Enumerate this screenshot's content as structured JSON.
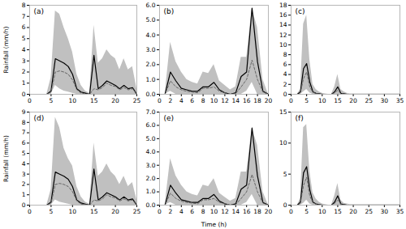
{
  "chart_data": [
    {
      "type": "line",
      "annotations": [
        "(a)"
      ],
      "ylabel": "Rainfall (mm/h)",
      "grid": false,
      "x": [
        0,
        1,
        2,
        3,
        4,
        5,
        6,
        7,
        8,
        9,
        10,
        11,
        12,
        13,
        14,
        15,
        16,
        17,
        18,
        19,
        20,
        21,
        22,
        23,
        24,
        25
      ],
      "series": [
        {
          "type": "area",
          "color": "#c0c0c0",
          "upper": [
            0,
            0,
            0,
            0,
            0,
            1.5,
            7.5,
            7.2,
            6.0,
            5.0,
            3.8,
            1.8,
            0.8,
            0.3,
            0.1,
            6.2,
            2.8,
            3.2,
            4.0,
            3.5,
            3.2,
            2.2,
            3.2,
            2.2,
            2.5,
            0.5
          ],
          "lower": [
            0,
            0,
            0,
            0,
            0,
            0.0,
            0.8,
            0.5,
            0.3,
            0.2,
            0.1,
            0.0,
            0.0,
            0.0,
            0.0,
            0.0,
            0.0,
            0.0,
            0.0,
            0.0,
            0.0,
            0.0,
            0.0,
            0.0,
            0.0,
            0.0
          ]
        },
        {
          "type": "line",
          "color": "#000000",
          "line_style": "solid",
          "values": [
            0,
            0,
            0,
            0,
            0,
            0.3,
            3.2,
            3.0,
            2.8,
            2.5,
            1.8,
            0.5,
            0.2,
            0.1,
            0.0,
            3.5,
            0.5,
            0.8,
            1.2,
            1.0,
            0.8,
            0.5,
            0.8,
            0.5,
            0.6,
            0.0
          ]
        },
        {
          "type": "line",
          "color": "#666666",
          "line_style": "dashed",
          "values": [
            0,
            0,
            0,
            0,
            0,
            0.2,
            2.0,
            2.1,
            2.0,
            1.8,
            1.3,
            0.4,
            0.1,
            0.05,
            0.0,
            0.5,
            0.4,
            0.6,
            1.0,
            0.8,
            0.7,
            0.4,
            0.6,
            0.4,
            0.5,
            0.0
          ]
        }
      ],
      "xlim": [
        0,
        25
      ],
      "xticks": [
        0,
        5,
        10,
        15,
        20,
        25
      ],
      "ylim": [
        0,
        8
      ],
      "yticks": [
        0,
        1,
        2,
        3,
        4,
        5,
        6,
        7,
        8
      ]
    },
    {
      "type": "line",
      "annotations": [
        "(b)"
      ],
      "grid": false,
      "x": [
        0,
        1,
        2,
        3,
        4,
        5,
        6,
        7,
        8,
        9,
        10,
        11,
        12,
        13,
        14,
        15,
        16,
        17,
        18,
        19,
        20
      ],
      "series": [
        {
          "type": "area",
          "color": "#c0c0c0",
          "upper": [
            0,
            0,
            3.5,
            2.2,
            1.5,
            1.0,
            0.8,
            0.7,
            1.5,
            1.4,
            2.0,
            0.9,
            0.6,
            0.3,
            0.5,
            2.5,
            2.5,
            5.8,
            4.5,
            1.0,
            0.0
          ],
          "lower": [
            0,
            0,
            0.2,
            0.0,
            0.0,
            0.0,
            0.0,
            0.0,
            0.0,
            0.0,
            0.0,
            0.0,
            0.0,
            0.0,
            0.0,
            0.0,
            0.2,
            0.8,
            0.0,
            0.0,
            0.0
          ]
        },
        {
          "type": "line",
          "color": "#000000",
          "line_style": "solid",
          "values": [
            0,
            0,
            1.5,
            0.9,
            0.4,
            0.3,
            0.2,
            0.2,
            0.5,
            0.5,
            0.8,
            0.3,
            0.1,
            0.0,
            0.1,
            1.2,
            1.5,
            5.8,
            2.2,
            0.2,
            0.0
          ]
        },
        {
          "type": "line",
          "color": "#666666",
          "line_style": "dashed",
          "values": [
            0,
            0,
            0.9,
            0.5,
            0.3,
            0.2,
            0.15,
            0.1,
            0.4,
            0.4,
            0.5,
            0.2,
            0.1,
            0.0,
            0.05,
            0.5,
            1.0,
            2.3,
            1.0,
            0.15,
            0.0
          ]
        }
      ],
      "xlim": [
        0,
        20
      ],
      "xticks": [
        0,
        2,
        4,
        6,
        8,
        10,
        12,
        14,
        16,
        18,
        20
      ],
      "ylim": [
        0,
        6
      ],
      "yticks": [
        0,
        1,
        2,
        3,
        4,
        5,
        6
      ]
    },
    {
      "type": "line",
      "annotations": [
        "(c)"
      ],
      "grid": false,
      "x": [
        0,
        1,
        2,
        3,
        4,
        5,
        6,
        7,
        8,
        9,
        10,
        11,
        12,
        13,
        14,
        15,
        16,
        17,
        18,
        19,
        20,
        21,
        22,
        23,
        24,
        25,
        26,
        27,
        28,
        29,
        30,
        31,
        32,
        33,
        34,
        35
      ],
      "series": [
        {
          "type": "area",
          "color": "#c0c0c0",
          "upper": [
            0,
            0,
            0,
            1.0,
            14.2,
            16.0,
            7.0,
            2.0,
            1.0,
            0.5,
            0.2,
            0.1,
            0.0,
            0.0,
            1.5,
            4.0,
            1.0,
            0.5,
            0.2,
            0.1,
            0.1,
            0.1,
            0.1,
            0.1,
            0.1,
            0.1,
            0.1,
            0.1,
            0.1,
            0.1,
            0.1,
            0.1,
            0.1,
            0.1,
            0.1,
            0.1
          ],
          "lower": [
            0,
            0,
            0,
            0.0,
            0.5,
            1.0,
            0.3,
            0.0,
            0.0,
            0.0,
            0.0,
            0.0,
            0.0,
            0.0,
            0.0,
            0.0,
            0.0,
            0.0,
            0.0,
            0.0,
            0.0,
            0.0,
            0.0,
            0.0,
            0.0,
            0.0,
            0.0,
            0.0,
            0.0,
            0.0,
            0.0,
            0.0,
            0.0,
            0.0,
            0.0,
            0.0
          ]
        },
        {
          "type": "line",
          "color": "#000000",
          "line_style": "solid",
          "values": [
            0,
            0,
            0,
            0.5,
            5.2,
            6.2,
            2.5,
            0.5,
            0.2,
            0.1,
            0.0,
            0.0,
            0.0,
            0.0,
            0.5,
            1.5,
            0.2,
            0.1,
            0.0,
            0.0,
            0.0,
            0.0,
            0.0,
            0.0,
            0.0,
            0.0,
            0.0,
            0.0,
            0.0,
            0.0,
            0.0,
            0.0,
            0.0,
            0.0,
            0.0,
            0.0
          ]
        },
        {
          "type": "line",
          "color": "#666666",
          "line_style": "dashed",
          "values": [
            0,
            0,
            0,
            0.3,
            3.2,
            4.5,
            1.5,
            0.4,
            0.15,
            0.05,
            0.0,
            0.0,
            0.0,
            0.0,
            0.3,
            0.8,
            0.15,
            0.05,
            0.0,
            0.0,
            0.0,
            0.0,
            0.0,
            0.0,
            0.0,
            0.0,
            0.0,
            0.0,
            0.0,
            0.0,
            0.0,
            0.0,
            0.0,
            0.0,
            0.0,
            0.0
          ]
        }
      ],
      "xlim": [
        0,
        35
      ],
      "xticks": [
        0,
        5,
        10,
        15,
        20,
        25,
        30,
        35
      ],
      "ylim": [
        0,
        18
      ],
      "yticks": [
        0,
        2,
        4,
        6,
        8,
        10,
        12,
        14,
        16,
        18
      ]
    },
    {
      "type": "line",
      "annotations": [
        "(d)"
      ],
      "ylabel": "Rainfall (mm/h)",
      "grid": false,
      "x": [
        0,
        1,
        2,
        3,
        4,
        5,
        6,
        7,
        8,
        9,
        10,
        11,
        12,
        13,
        14,
        15,
        16,
        17,
        18,
        19,
        20,
        21,
        22,
        23,
        24,
        25
      ],
      "series": [
        {
          "type": "area",
          "color": "#c0c0c0",
          "upper": [
            0,
            0,
            0,
            0,
            0,
            1.5,
            8.5,
            7.5,
            5.5,
            4.5,
            3.8,
            1.8,
            0.8,
            0.3,
            0.1,
            6.0,
            2.8,
            3.2,
            4.0,
            3.2,
            2.8,
            2.0,
            2.8,
            1.8,
            2.2,
            0.5
          ],
          "lower": [
            0,
            0,
            0,
            0,
            0,
            0.0,
            0.5,
            0.3,
            0.2,
            0.1,
            0.0,
            0.0,
            0.0,
            0.0,
            0.0,
            0.0,
            0.0,
            0.0,
            0.0,
            0.0,
            0.0,
            0.0,
            0.0,
            0.0,
            0.0,
            0.0
          ]
        },
        {
          "type": "line",
          "color": "#000000",
          "line_style": "solid",
          "values": [
            0,
            0,
            0,
            0,
            0,
            0.3,
            3.2,
            3.0,
            2.8,
            2.5,
            1.8,
            0.5,
            0.2,
            0.1,
            0.0,
            3.5,
            0.5,
            0.8,
            1.2,
            1.0,
            0.8,
            0.5,
            0.8,
            0.5,
            0.6,
            0.0
          ]
        },
        {
          "type": "line",
          "color": "#666666",
          "line_style": "dashed",
          "values": [
            0,
            0,
            0,
            0,
            0,
            0.2,
            2.0,
            2.1,
            2.0,
            1.8,
            1.3,
            0.4,
            0.1,
            0.05,
            0.0,
            0.5,
            0.4,
            0.6,
            1.0,
            0.8,
            0.7,
            0.4,
            0.6,
            0.4,
            0.5,
            0.0
          ]
        }
      ],
      "xlim": [
        0,
        25
      ],
      "xticks": [
        0,
        5,
        10,
        15,
        20,
        25
      ],
      "ylim": [
        0,
        9
      ],
      "yticks": [
        0,
        1,
        2,
        3,
        4,
        5,
        6,
        7,
        8,
        9
      ]
    },
    {
      "type": "line",
      "annotations": [
        "(e)"
      ],
      "xlabel": "Time (h)",
      "grid": false,
      "x": [
        0,
        1,
        2,
        3,
        4,
        5,
        6,
        7,
        8,
        9,
        10,
        11,
        12,
        13,
        14,
        15,
        16,
        17,
        18,
        19,
        20
      ],
      "series": [
        {
          "type": "area",
          "color": "#c0c0c0",
          "upper": [
            0,
            0,
            3.5,
            2.2,
            1.5,
            1.0,
            0.8,
            0.7,
            1.5,
            1.4,
            2.0,
            0.9,
            0.6,
            0.3,
            0.5,
            2.5,
            2.5,
            5.8,
            4.5,
            1.0,
            0.0
          ],
          "lower": [
            0,
            0,
            0.2,
            0.0,
            0.0,
            0.0,
            0.0,
            0.0,
            0.0,
            0.0,
            0.0,
            0.0,
            0.0,
            0.0,
            0.0,
            0.0,
            0.2,
            0.8,
            0.0,
            0.0,
            0.0
          ]
        },
        {
          "type": "line",
          "color": "#000000",
          "line_style": "solid",
          "values": [
            0,
            0,
            1.5,
            0.9,
            0.4,
            0.3,
            0.2,
            0.2,
            0.5,
            0.5,
            0.8,
            0.3,
            0.1,
            0.0,
            0.1,
            1.2,
            1.5,
            5.8,
            2.2,
            0.2,
            0.0
          ]
        },
        {
          "type": "line",
          "color": "#666666",
          "line_style": "dashed",
          "values": [
            0,
            0,
            0.9,
            0.5,
            0.3,
            0.2,
            0.15,
            0.1,
            0.4,
            0.4,
            0.5,
            0.2,
            0.1,
            0.0,
            0.05,
            0.5,
            1.0,
            2.3,
            1.0,
            0.15,
            0.0
          ]
        }
      ],
      "xlim": [
        0,
        20
      ],
      "xticks": [
        0,
        2,
        4,
        6,
        8,
        10,
        12,
        14,
        16,
        18,
        20
      ],
      "ylim": [
        0,
        7
      ],
      "yticks": [
        0,
        1,
        2,
        3,
        4,
        5,
        6,
        7
      ]
    },
    {
      "type": "line",
      "annotations": [
        "(f)"
      ],
      "grid": false,
      "x": [
        0,
        1,
        2,
        3,
        4,
        5,
        6,
        7,
        8,
        9,
        10,
        11,
        12,
        13,
        14,
        15,
        16,
        17,
        18,
        19,
        20,
        21,
        22,
        23,
        24,
        25,
        26,
        27,
        28,
        29,
        30,
        31,
        32,
        33,
        34,
        35
      ],
      "series": [
        {
          "type": "area",
          "color": "#c0c0c0",
          "upper": [
            0,
            0,
            0,
            1.0,
            12.5,
            13.0,
            5.5,
            2.0,
            1.0,
            0.5,
            0.2,
            0.1,
            0.0,
            0.0,
            1.5,
            3.5,
            0.8,
            0.3,
            0.2,
            0.1,
            0.1,
            0.1,
            0.1,
            0.1,
            0.1,
            0.1,
            0.1,
            0.1,
            0.1,
            0.1,
            0.1,
            0.1,
            0.1,
            0.1,
            0.1,
            0.1
          ],
          "lower": [
            0,
            0,
            0,
            0.0,
            0.3,
            0.8,
            0.2,
            0.0,
            0.0,
            0.0,
            0.0,
            0.0,
            0.0,
            0.0,
            0.0,
            0.0,
            0.0,
            0.0,
            0.0,
            0.0,
            0.0,
            0.0,
            0.0,
            0.0,
            0.0,
            0.0,
            0.0,
            0.0,
            0.0,
            0.0,
            0.0,
            0.0,
            0.0,
            0.0,
            0.0,
            0.0
          ]
        },
        {
          "type": "line",
          "color": "#000000",
          "line_style": "solid",
          "values": [
            0,
            0,
            0,
            0.5,
            5.2,
            6.2,
            2.5,
            0.5,
            0.2,
            0.1,
            0.0,
            0.0,
            0.0,
            0.0,
            0.5,
            1.5,
            0.2,
            0.1,
            0.0,
            0.0,
            0.0,
            0.0,
            0.0,
            0.0,
            0.0,
            0.0,
            0.0,
            0.0,
            0.0,
            0.0,
            0.0,
            0.0,
            0.0,
            0.0,
            0.0,
            0.0
          ]
        },
        {
          "type": "line",
          "color": "#666666",
          "line_style": "dashed",
          "values": [
            0,
            0,
            0,
            0.3,
            3.2,
            4.5,
            1.5,
            0.4,
            0.15,
            0.05,
            0.0,
            0.0,
            0.0,
            0.0,
            0.3,
            0.8,
            0.15,
            0.05,
            0.0,
            0.0,
            0.0,
            0.0,
            0.0,
            0.0,
            0.0,
            0.0,
            0.0,
            0.0,
            0.0,
            0.0,
            0.0,
            0.0,
            0.0,
            0.0,
            0.0,
            0.0
          ]
        }
      ],
      "xlim": [
        0,
        35
      ],
      "xticks": [
        0,
        5,
        10,
        15,
        20,
        25,
        30,
        35
      ],
      "ylim": [
        0,
        15
      ],
      "yticks": [
        0,
        5,
        10,
        15
      ]
    }
  ]
}
